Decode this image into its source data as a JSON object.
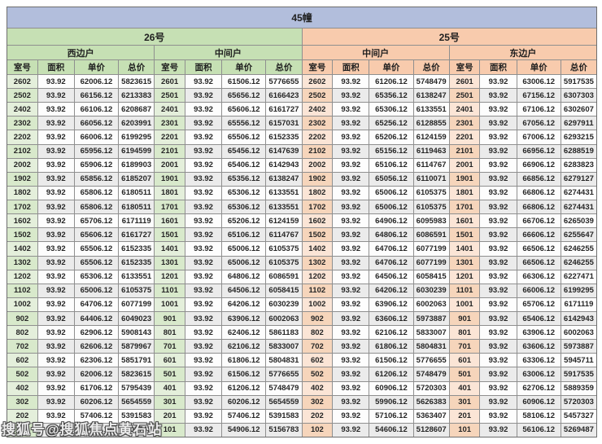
{
  "title": "45幢",
  "watermark": "搜狐号@搜狐焦点黄石站",
  "columns": [
    "室号",
    "面积",
    "单价",
    "总价"
  ],
  "sections": [
    {
      "label": "26号",
      "color": "#c6e0b4"
    },
    {
      "label": "25号",
      "color": "#f8cbad"
    }
  ],
  "colors": {
    "title_bar": "#b2bedc",
    "green": "#c6e0b4",
    "peach": "#f8cbad",
    "stripe_gray": "#ebebeb",
    "border": "#8f8f8f"
  },
  "groups": [
    {
      "section": "26号",
      "unit": "西边户",
      "rows": [
        [
          "2602",
          "93.92",
          "62006.12",
          "5823615"
        ],
        [
          "2502",
          "93.92",
          "66156.12",
          "6213383"
        ],
        [
          "2402",
          "93.92",
          "66106.12",
          "6208687"
        ],
        [
          "2302",
          "93.92",
          "66056.12",
          "6203991"
        ],
        [
          "2202",
          "93.92",
          "66006.12",
          "6199295"
        ],
        [
          "2102",
          "93.92",
          "65956.12",
          "6194599"
        ],
        [
          "2002",
          "93.92",
          "65906.12",
          "6189903"
        ],
        [
          "1902",
          "93.92",
          "65856.12",
          "6185207"
        ],
        [
          "1802",
          "93.92",
          "65806.12",
          "6180511"
        ],
        [
          "1702",
          "93.92",
          "65806.12",
          "6180511"
        ],
        [
          "1602",
          "93.92",
          "65706.12",
          "6171119"
        ],
        [
          "1502",
          "93.92",
          "65606.12",
          "6161727"
        ],
        [
          "1402",
          "93.92",
          "65506.12",
          "6152335"
        ],
        [
          "1302",
          "93.92",
          "65506.12",
          "6152335"
        ],
        [
          "1202",
          "93.92",
          "65306.12",
          "6133551"
        ],
        [
          "1102",
          "93.92",
          "65006.12",
          "6105375"
        ],
        [
          "1002",
          "93.92",
          "64706.12",
          "6077199"
        ],
        [
          "902",
          "93.92",
          "64406.12",
          "6049023"
        ],
        [
          "802",
          "93.92",
          "62906.12",
          "5908143"
        ],
        [
          "702",
          "93.92",
          "62606.12",
          "5879967"
        ],
        [
          "602",
          "93.92",
          "62306.12",
          "5851791"
        ],
        [
          "502",
          "93.92",
          "62006.12",
          "5823615"
        ],
        [
          "402",
          "93.92",
          "61706.12",
          "5795439"
        ],
        [
          "302",
          "93.92",
          "60206.12",
          "5654559"
        ],
        [
          "202",
          "93.92",
          "57406.12",
          "5391583"
        ],
        [
          "102",
          "93.92",
          "55406.12",
          "5203743"
        ]
      ]
    },
    {
      "section": "26号",
      "unit": "中间户",
      "rows": [
        [
          "2601",
          "93.92",
          "61506.12",
          "5776655"
        ],
        [
          "2501",
          "93.92",
          "65656.12",
          "6166423"
        ],
        [
          "2401",
          "93.92",
          "65606.12",
          "6161727"
        ],
        [
          "2301",
          "93.92",
          "65556.12",
          "6157031"
        ],
        [
          "2201",
          "93.92",
          "65506.12",
          "6152335"
        ],
        [
          "2101",
          "93.92",
          "65456.12",
          "6147639"
        ],
        [
          "2001",
          "93.92",
          "65406.12",
          "6142943"
        ],
        [
          "1901",
          "93.92",
          "65356.12",
          "6138247"
        ],
        [
          "1801",
          "93.92",
          "65306.12",
          "6133551"
        ],
        [
          "1701",
          "93.92",
          "65306.12",
          "6133551"
        ],
        [
          "1601",
          "93.92",
          "65206.12",
          "6124159"
        ],
        [
          "1501",
          "93.92",
          "65106.12",
          "6114767"
        ],
        [
          "1401",
          "93.92",
          "65006.12",
          "6105375"
        ],
        [
          "1301",
          "93.92",
          "65006.12",
          "6105375"
        ],
        [
          "1201",
          "93.92",
          "64806.12",
          "6086591"
        ],
        [
          "1101",
          "93.92",
          "64506.12",
          "6058415"
        ],
        [
          "1001",
          "93.92",
          "64206.12",
          "6030239"
        ],
        [
          "901",
          "93.92",
          "63906.12",
          "6002063"
        ],
        [
          "801",
          "93.92",
          "62406.12",
          "5861183"
        ],
        [
          "701",
          "93.92",
          "62106.12",
          "5833007"
        ],
        [
          "601",
          "93.92",
          "61806.12",
          "5804831"
        ],
        [
          "501",
          "93.92",
          "61506.12",
          "5776655"
        ],
        [
          "401",
          "93.92",
          "61206.12",
          "5748479"
        ],
        [
          "301",
          "93.92",
          "60206.12",
          "5654559"
        ],
        [
          "201",
          "93.92",
          "57406.12",
          "5391583"
        ],
        [
          "101",
          "93.92",
          "54906.12",
          "5156783"
        ]
      ]
    },
    {
      "section": "25号",
      "unit": "中间户",
      "rows": [
        [
          "2602",
          "93.92",
          "61206.12",
          "5748479"
        ],
        [
          "2502",
          "93.92",
          "65356.12",
          "6138247"
        ],
        [
          "2402",
          "93.92",
          "65306.12",
          "6133551"
        ],
        [
          "2302",
          "93.92",
          "65256.12",
          "6128855"
        ],
        [
          "2202",
          "93.92",
          "65206.12",
          "6124159"
        ],
        [
          "2102",
          "93.92",
          "65156.12",
          "6119463"
        ],
        [
          "2002",
          "93.92",
          "65106.12",
          "6114767"
        ],
        [
          "1902",
          "93.92",
          "65056.12",
          "6110071"
        ],
        [
          "1802",
          "93.92",
          "65006.12",
          "6105375"
        ],
        [
          "1702",
          "93.92",
          "65006.12",
          "6105375"
        ],
        [
          "1602",
          "93.92",
          "64906.12",
          "6095983"
        ],
        [
          "1502",
          "93.92",
          "64806.12",
          "6086591"
        ],
        [
          "1402",
          "93.92",
          "64706.12",
          "6077199"
        ],
        [
          "1302",
          "93.92",
          "64706.12",
          "6077199"
        ],
        [
          "1202",
          "93.92",
          "64506.12",
          "6058415"
        ],
        [
          "1102",
          "93.92",
          "64206.12",
          "6030239"
        ],
        [
          "1002",
          "93.92",
          "63906.12",
          "6002063"
        ],
        [
          "902",
          "93.92",
          "63606.12",
          "5973887"
        ],
        [
          "802",
          "93.92",
          "62106.12",
          "5833007"
        ],
        [
          "702",
          "93.92",
          "61806.12",
          "5804831"
        ],
        [
          "602",
          "93.92",
          "61506.12",
          "5776655"
        ],
        [
          "502",
          "93.92",
          "61206.12",
          "5748479"
        ],
        [
          "402",
          "93.92",
          "60906.12",
          "5720303"
        ],
        [
          "302",
          "93.92",
          "59906.12",
          "5626383"
        ],
        [
          "202",
          "93.92",
          "57106.12",
          "5363407"
        ],
        [
          "102",
          "93.92",
          "54606.12",
          "5128607"
        ]
      ]
    },
    {
      "section": "25号",
      "unit": "东边户",
      "rows": [
        [
          "2601",
          "93.92",
          "63006.12",
          "5917535"
        ],
        [
          "2501",
          "93.92",
          "67156.12",
          "6307303"
        ],
        [
          "2401",
          "93.92",
          "67106.12",
          "6302607"
        ],
        [
          "2301",
          "93.92",
          "67056.12",
          "6297911"
        ],
        [
          "2201",
          "93.92",
          "67006.12",
          "6293215"
        ],
        [
          "2101",
          "93.92",
          "66956.12",
          "6288519"
        ],
        [
          "2001",
          "93.92",
          "66906.12",
          "6283823"
        ],
        [
          "1901",
          "93.92",
          "66856.12",
          "6279127"
        ],
        [
          "1801",
          "93.92",
          "66806.12",
          "6274431"
        ],
        [
          "1701",
          "93.92",
          "66806.12",
          "6274431"
        ],
        [
          "1601",
          "93.92",
          "66706.12",
          "6265039"
        ],
        [
          "1501",
          "93.92",
          "66606.12",
          "6255647"
        ],
        [
          "1401",
          "93.92",
          "66506.12",
          "6246255"
        ],
        [
          "1301",
          "93.92",
          "66506.12",
          "6246255"
        ],
        [
          "1201",
          "93.92",
          "66306.12",
          "6227471"
        ],
        [
          "1101",
          "93.92",
          "66006.12",
          "6199295"
        ],
        [
          "1001",
          "93.92",
          "65706.12",
          "6171119"
        ],
        [
          "901",
          "93.92",
          "65406.12",
          "6142943"
        ],
        [
          "801",
          "93.92",
          "63906.12",
          "6002063"
        ],
        [
          "701",
          "93.92",
          "63606.12",
          "5973887"
        ],
        [
          "601",
          "93.92",
          "63306.12",
          "5945711"
        ],
        [
          "501",
          "93.92",
          "63006.12",
          "5917535"
        ],
        [
          "401",
          "93.92",
          "62706.12",
          "5889359"
        ],
        [
          "301",
          "93.92",
          "60906.12",
          "5720303"
        ],
        [
          "201",
          "93.92",
          "58106.12",
          "5457327"
        ],
        [
          "101",
          "93.92",
          "56106.12",
          "5269487"
        ]
      ]
    }
  ]
}
